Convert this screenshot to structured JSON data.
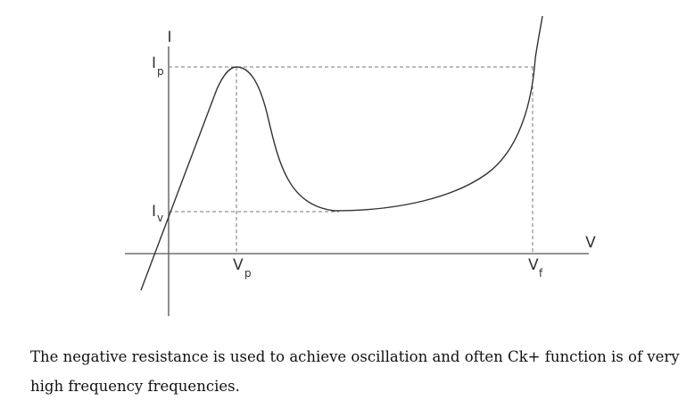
{
  "diagram": {
    "axis_labels": {
      "current": "I",
      "voltage": "V"
    },
    "current_levels": [
      {
        "main": "I",
        "sub": "p"
      },
      {
        "main": "I",
        "sub": "v"
      }
    ],
    "voltage_points": [
      {
        "main": "V",
        "sub": "p"
      },
      {
        "main": "V",
        "sub": "f"
      }
    ]
  },
  "caption": "The negative resistance is used to achieve oscillation and often Ck+ function is of very high frequency frequencies.",
  "colors": {
    "curve": "#333333",
    "axes": "#555555",
    "guides": "#777777",
    "text": "#111111"
  }
}
